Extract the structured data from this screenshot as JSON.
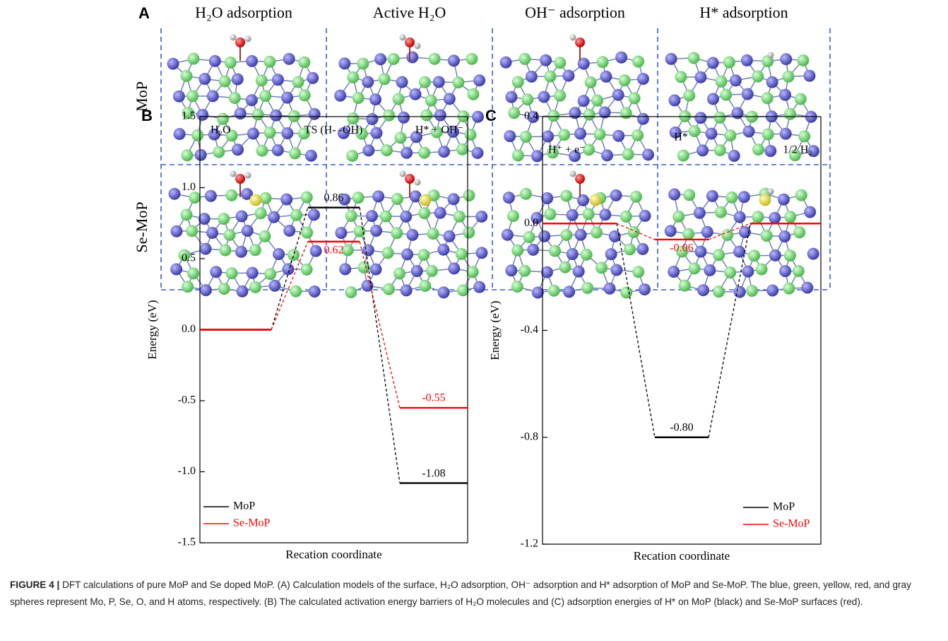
{
  "panel_a": {
    "label": "A",
    "columns": [
      "H₂O adsorption",
      "Active  H₂O",
      "OH⁻ adsorption",
      "H* adsorption"
    ],
    "rows": [
      "MoP",
      "Se-MoP"
    ]
  },
  "chart_data": [
    {
      "type": "energy-levels",
      "panel": "B",
      "xlabel": "Recation coordinate",
      "ylabel": "Energy (eV)",
      "categories": [
        "H₂O",
        "TS (H- -OH)",
        "H* + OH⁻"
      ],
      "series": [
        {
          "name": "MoP",
          "color": "#000000",
          "values": [
            0,
            0.86,
            -1.08
          ],
          "value_labels": [
            null,
            "0.86",
            "-1.08"
          ]
        },
        {
          "name": "Se-MoP",
          "color": "#ff0000",
          "values": [
            0,
            0.62,
            -0.55
          ],
          "value_labels": [
            null,
            "0.62",
            "-0.55"
          ]
        }
      ],
      "ylim": [
        -1.5,
        1.5
      ],
      "yticks": [
        -1.5,
        {
          "value": -1,
          "label": "-1.0"
        },
        -0.5,
        {
          "value": 0,
          "label": "0.0"
        },
        0.5,
        {
          "value": 1,
          "label": "1.0"
        },
        1.5
      ],
      "legend": "lower left"
    },
    {
      "type": "energy-levels",
      "panel": "C",
      "xlabel": "Recation coordinate",
      "ylabel": "Energy (eV)",
      "categories": [
        "H⁺ + e⁻",
        "H*",
        "1/2 H₂"
      ],
      "series": [
        {
          "name": "MoP",
          "color": "#000000",
          "values": [
            0,
            -0.8,
            0
          ],
          "value_labels": [
            null,
            "-0.80",
            null
          ]
        },
        {
          "name": "Se-MoP",
          "color": "#ff0000",
          "values": [
            0,
            -0.06,
            0
          ],
          "value_labels": [
            null,
            "-0.06",
            null
          ]
        }
      ],
      "ylim": [
        -1.2,
        0.4
      ],
      "yticks": [
        -1.2,
        -0.8,
        -0.4,
        {
          "value": 0,
          "label": "0.0"
        },
        0.4
      ],
      "legend": "lower right"
    }
  ],
  "caption": {
    "label": "FIGURE 4 |",
    "text": "DFT calculations of pure MoP and Se doped MoP. (A) Calculation models of the surface, H₂O adsorption, OH⁻ adsorption and H* adsorption of MoP and Se-MoP. The blue, green, yellow, red, and gray spheres represent Mo, P, Se, O, and H atoms, respectively. (B) The calculated activation energy barriers of H₂O molecules and (C) adsorption energies of H* on MoP (black) and Se-MoP surfaces (red)."
  }
}
